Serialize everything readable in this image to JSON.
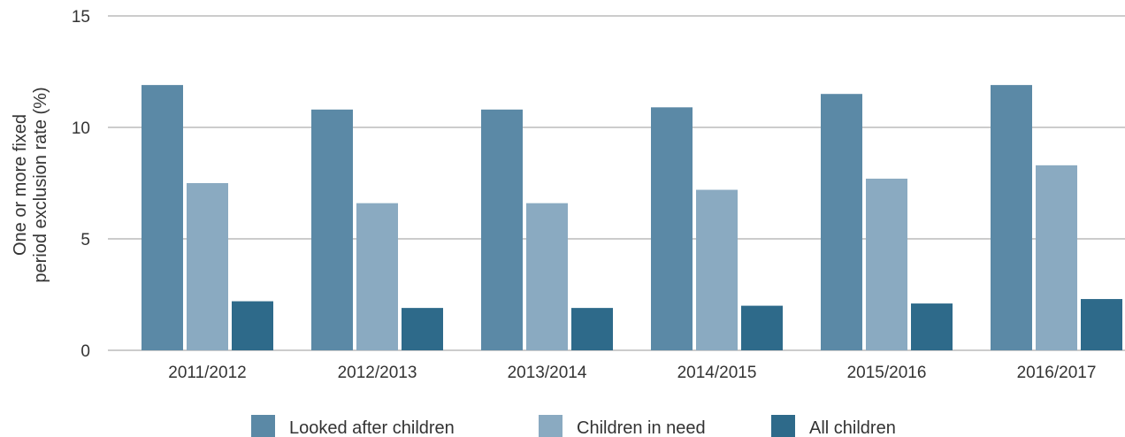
{
  "chart_data": {
    "type": "bar",
    "categories": [
      "2011/2012",
      "2012/2013",
      "2013/2014",
      "2014/2015",
      "2015/2016",
      "2016/2017"
    ],
    "series": [
      {
        "name": "Looked after children",
        "values": [
          11.9,
          10.8,
          10.8,
          10.9,
          11.5,
          11.9
        ],
        "color": "#5b89a6"
      },
      {
        "name": "Children in need",
        "values": [
          7.5,
          6.6,
          6.6,
          7.2,
          7.7,
          8.3
        ],
        "color": "#8aaac1"
      },
      {
        "name": "All children",
        "values": [
          2.2,
          1.9,
          1.9,
          2.0,
          2.1,
          2.3
        ],
        "color": "#2e6a8a"
      }
    ],
    "ylabel_lines": [
      "One or more fixed",
      "period exclusion rate (%)"
    ],
    "ylim": [
      0,
      15
    ],
    "yticks": [
      "0",
      "5",
      "10",
      "15"
    ],
    "grid": true,
    "legend_position": "bottom"
  }
}
